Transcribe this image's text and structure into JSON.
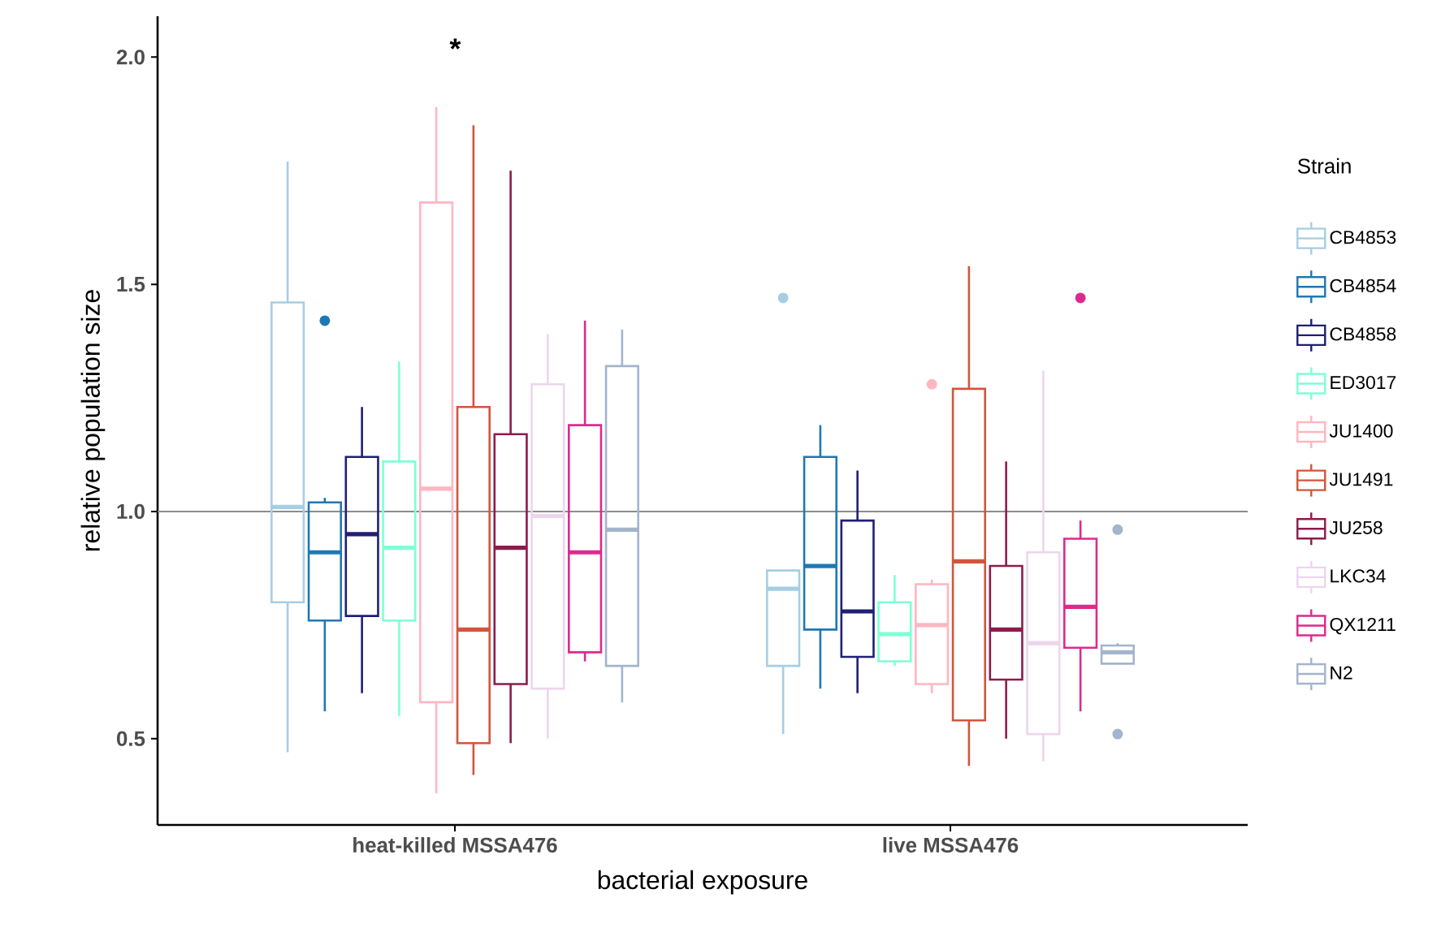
{
  "chart_data": {
    "type": "box",
    "xlabel": "bacterial exposure",
    "ylabel": "relative population size",
    "legend_title": "Strain",
    "legend": "right",
    "marker": "circle",
    "categories": [
      "heat-killed MSSA476",
      "live MSSA476"
    ],
    "ylim": [
      0.31,
      2.09
    ],
    "yticks": [
      {
        "value": 0.5,
        "label": "0.5"
      },
      {
        "value": 1.0,
        "label": "1.0"
      },
      {
        "value": 1.5,
        "label": "1.5"
      },
      {
        "value": 2.0,
        "label": "2.0"
      }
    ],
    "ref_lines": [
      {
        "axis": "y",
        "value": 1.0,
        "color": "#8c8c8c"
      }
    ],
    "annotations": [
      "*"
    ],
    "series": [
      {
        "name": "CB4853",
        "color": "#a6cee3",
        "boxes": [
          {
            "low": 0.47,
            "q1": 0.8,
            "median": 1.01,
            "q3": 1.46,
            "high": 1.77
          },
          {
            "low": 0.51,
            "q1": 0.66,
            "median": 0.83,
            "q3": 0.87,
            "high": 0.87,
            "outliers": [
              1.47
            ]
          }
        ]
      },
      {
        "name": "CB4854",
        "color": "#1f78b4",
        "boxes": [
          {
            "low": 0.56,
            "q1": 0.76,
            "median": 0.91,
            "q3": 1.02,
            "high": 1.03,
            "outliers": [
              1.42
            ]
          },
          {
            "low": 0.61,
            "q1": 0.74,
            "median": 0.88,
            "q3": 1.12,
            "high": 1.19
          }
        ]
      },
      {
        "name": "CB4858",
        "color": "#1f1f75",
        "boxes": [
          {
            "low": 0.6,
            "q1": 0.77,
            "median": 0.95,
            "q3": 1.12,
            "high": 1.23
          },
          {
            "low": 0.6,
            "q1": 0.68,
            "median": 0.78,
            "q3": 0.98,
            "high": 1.09
          }
        ]
      },
      {
        "name": "ED3017",
        "color": "#7fffd4",
        "boxes": [
          {
            "low": 0.55,
            "q1": 0.76,
            "median": 0.92,
            "q3": 1.11,
            "high": 1.33
          },
          {
            "low": 0.66,
            "q1": 0.67,
            "median": 0.73,
            "q3": 0.8,
            "high": 0.86
          }
        ]
      },
      {
        "name": "JU1400",
        "color": "#ffb6c1",
        "boxes": [
          {
            "low": 0.38,
            "q1": 0.58,
            "median": 1.05,
            "q3": 1.68,
            "high": 1.89
          },
          {
            "low": 0.6,
            "q1": 0.62,
            "median": 0.75,
            "q3": 0.84,
            "high": 0.85,
            "outliers": [
              1.28
            ]
          }
        ]
      },
      {
        "name": "JU1491",
        "color": "#d2553c",
        "boxes": [
          {
            "low": 0.42,
            "q1": 0.49,
            "median": 0.74,
            "q3": 1.23,
            "high": 1.85
          },
          {
            "low": 0.44,
            "q1": 0.54,
            "median": 0.89,
            "q3": 1.27,
            "high": 1.54
          }
        ]
      },
      {
        "name": "JU258",
        "color": "#8b1c4c",
        "boxes": [
          {
            "low": 0.49,
            "q1": 0.62,
            "median": 0.92,
            "q3": 1.17,
            "high": 1.75
          },
          {
            "low": 0.5,
            "q1": 0.63,
            "median": 0.74,
            "q3": 0.88,
            "high": 1.11
          }
        ]
      },
      {
        "name": "LKC34",
        "color": "#eed5ee",
        "boxes": [
          {
            "low": 0.5,
            "q1": 0.61,
            "median": 0.99,
            "q3": 1.28,
            "high": 1.39
          },
          {
            "low": 0.45,
            "q1": 0.51,
            "median": 0.71,
            "q3": 0.91,
            "high": 1.31
          }
        ]
      },
      {
        "name": "QX1211",
        "color": "#dd2a8f",
        "boxes": [
          {
            "low": 0.67,
            "q1": 0.69,
            "median": 0.91,
            "q3": 1.19,
            "high": 1.42
          },
          {
            "low": 0.56,
            "q1": 0.7,
            "median": 0.79,
            "q3": 0.94,
            "high": 0.98,
            "outliers": [
              1.47
            ]
          }
        ]
      },
      {
        "name": "N2",
        "color": "#a2b5cd",
        "boxes": [
          {
            "low": 0.58,
            "q1": 0.66,
            "median": 0.96,
            "q3": 1.32,
            "high": 1.4
          },
          {
            "low": 0.665,
            "q1": 0.665,
            "median": 0.69,
            "q3": 0.705,
            "high": 0.71,
            "outliers": [
              0.96,
              0.51
            ]
          }
        ]
      }
    ]
  }
}
